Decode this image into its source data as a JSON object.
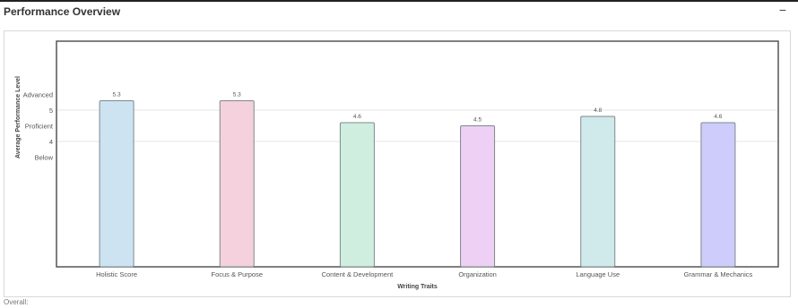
{
  "panel": {
    "title": "Performance Overview",
    "collapse_symbol": "−"
  },
  "footer": {
    "overall_label": "Overall:"
  },
  "chart_data": {
    "type": "bar",
    "title": "",
    "xlabel": "Writing Traits",
    "ylabel": "Average Performance Level",
    "categories": [
      "Holistic Score",
      "Focus & Purpose",
      "Content & Development",
      "Organization",
      "Language Use",
      "Grammar & Mechanics"
    ],
    "values": [
      5.3,
      5.3,
      4.6,
      4.5,
      4.8,
      4.6
    ],
    "value_labels": [
      "5.3",
      "5.3",
      "4.6",
      "4.5",
      "4.8",
      "4.6"
    ],
    "bar_colors": [
      "#cde3f2",
      "#f4d1dc",
      "#cfeedf",
      "#edd0f3",
      "#d0e9ea",
      "#cdccfb"
    ],
    "bar_stroke": "#7d8a8d",
    "ylim": [
      0,
      7.2
    ],
    "y_ticks": [
      {
        "value": 5.5,
        "label": "Advanced"
      },
      {
        "value": 5,
        "label": "5"
      },
      {
        "value": 4.5,
        "label": "Proficient"
      },
      {
        "value": 4,
        "label": "4"
      },
      {
        "value": 3.5,
        "label": "Below"
      }
    ],
    "gridlines": [
      5,
      4
    ],
    "grid": true,
    "legend": "none"
  }
}
